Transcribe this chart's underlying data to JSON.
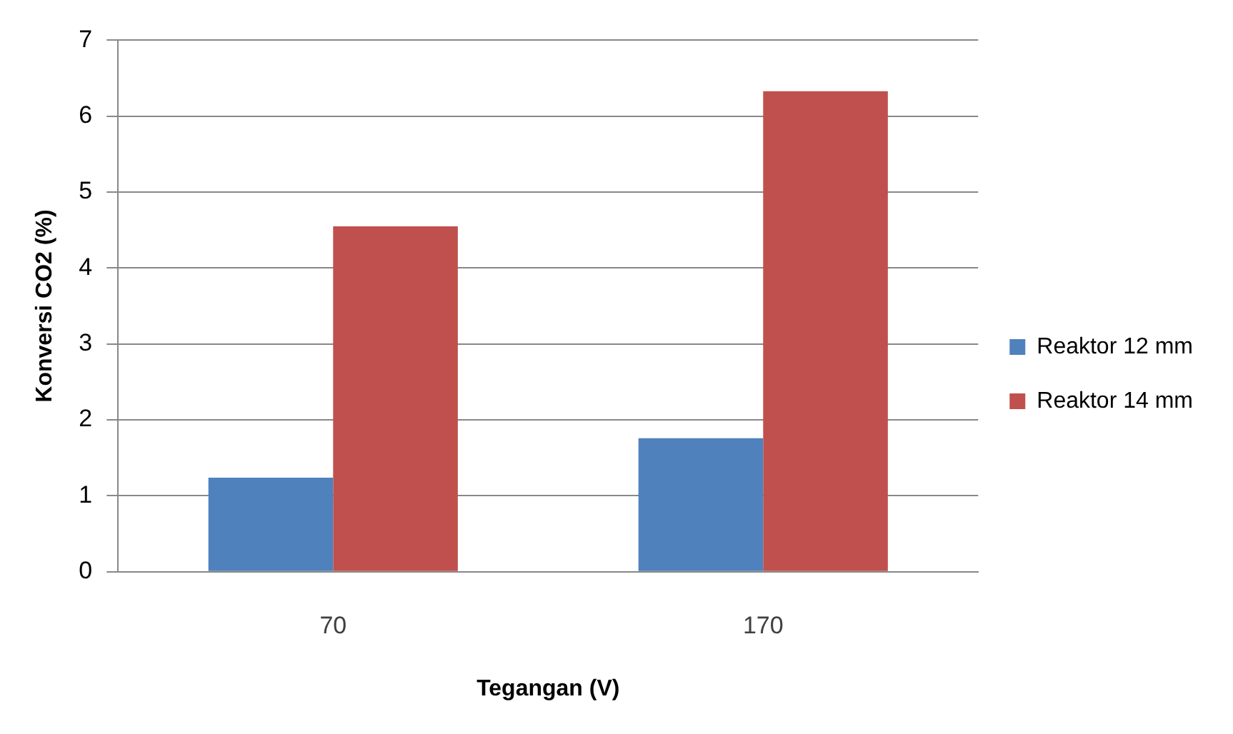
{
  "chart_data": {
    "type": "bar",
    "xlabel": "Tegangan (V)",
    "ylabel": "Konversi CO2 (%)",
    "categories": [
      "70",
      "170"
    ],
    "series": [
      {
        "name": "Reaktor 12 mm",
        "color": "#4f81bd",
        "values": [
          1.24,
          1.76
        ]
      },
      {
        "name": "Reaktor 14 mm",
        "color": "#c0504d",
        "values": [
          4.55,
          6.33
        ]
      }
    ],
    "ylim": [
      0,
      7
    ],
    "yticks": [
      0,
      1,
      2,
      3,
      4,
      5,
      6,
      7
    ],
    "grid": "y",
    "legend": "right"
  }
}
